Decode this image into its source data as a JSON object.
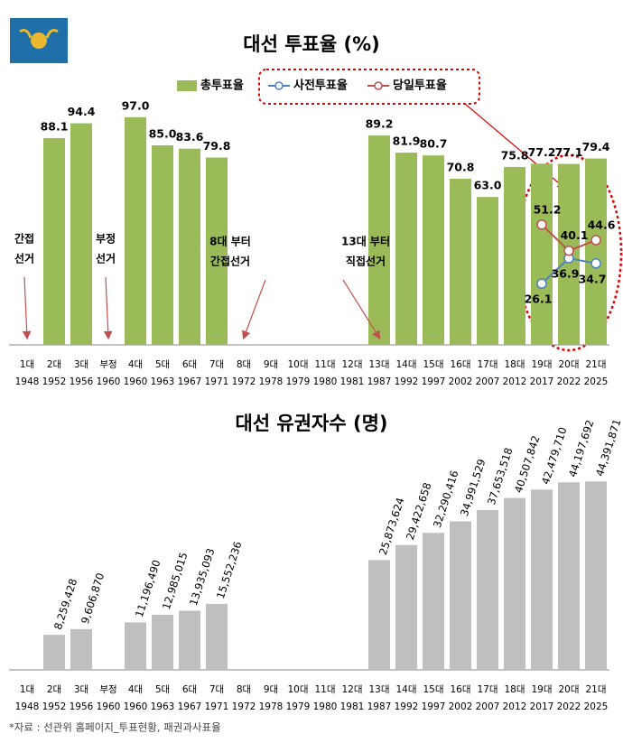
{
  "chart_data": [
    {
      "type": "bar",
      "title": "대선 투표율 (%)",
      "categories": [
        "1대",
        "2대",
        "3대",
        "부정",
        "4대",
        "5대",
        "6대",
        "7대",
        "8대",
        "9대",
        "10대",
        "11대",
        "12대",
        "13대",
        "14대",
        "15대",
        "16대",
        "17대",
        "18대",
        "19대",
        "20대",
        "21대"
      ],
      "years": [
        "1948",
        "1952",
        "1956",
        "1960",
        "1960",
        "1963",
        "1967",
        "1971",
        "1972",
        "1978",
        "1979",
        "1980",
        "1981",
        "1987",
        "1992",
        "1997",
        "2002",
        "2007",
        "2012",
        "2017",
        "2022",
        "2025"
      ],
      "ylim": [
        0,
        100
      ],
      "series": [
        {
          "name": "총투표율",
          "type": "bar",
          "color": "#9bbb59",
          "values": [
            null,
            88.1,
            94.4,
            null,
            97.0,
            85.0,
            83.6,
            79.8,
            null,
            null,
            null,
            null,
            null,
            89.2,
            81.9,
            80.7,
            70.8,
            63.0,
            75.8,
            77.2,
            77.1,
            79.4
          ],
          "value_labels": [
            null,
            "88.1",
            "94.4",
            null,
            "97.0",
            "85.0",
            "83.6",
            "79.8",
            null,
            null,
            null,
            null,
            null,
            "89.2",
            "81.9",
            "80.7",
            "70.8",
            "63.0",
            "75.8",
            "77.2",
            "77.1",
            "79.4"
          ]
        },
        {
          "name": "사전투표율",
          "type": "line",
          "color": "#4f81bd",
          "values": [
            null,
            null,
            null,
            null,
            null,
            null,
            null,
            null,
            null,
            null,
            null,
            null,
            null,
            null,
            null,
            null,
            null,
            null,
            null,
            26.1,
            36.9,
            34.7
          ]
        },
        {
          "name": "당일투표율",
          "type": "line",
          "color": "#c0504d",
          "values": [
            null,
            null,
            null,
            null,
            null,
            null,
            null,
            null,
            null,
            null,
            null,
            null,
            null,
            null,
            null,
            null,
            null,
            null,
            null,
            51.2,
            40.1,
            44.6
          ]
        }
      ],
      "annotations": [
        [
          "간접",
          "선거"
        ],
        [
          "부정",
          "선거"
        ],
        [
          "8대 부터",
          "간접선거"
        ],
        [
          "13대 부터",
          "직접선거"
        ]
      ]
    },
    {
      "type": "bar",
      "title": "대선 유권자수 (명)",
      "categories": [
        "1대",
        "2대",
        "3대",
        "부정",
        "4대",
        "5대",
        "6대",
        "7대",
        "8대",
        "9대",
        "10대",
        "11대",
        "12대",
        "13대",
        "14대",
        "15대",
        "16대",
        "17대",
        "18대",
        "19대",
        "20대",
        "21대"
      ],
      "years": [
        "1948",
        "1952",
        "1956",
        "1960",
        "1960",
        "1963",
        "1967",
        "1971",
        "1972",
        "1978",
        "1979",
        "1980",
        "1981",
        "1987",
        "1992",
        "1997",
        "2002",
        "2007",
        "2012",
        "2017",
        "2022",
        "2025"
      ],
      "ylim": [
        0,
        50000000
      ],
      "color": "#bfbfbf",
      "values": [
        null,
        8259428,
        9606870,
        null,
        11196490,
        12985015,
        13935093,
        15552236,
        null,
        null,
        null,
        null,
        null,
        25873624,
        29422658,
        32290416,
        34991529,
        37653518,
        40507842,
        42479710,
        44197692,
        44391871
      ],
      "value_labels": [
        null,
        "8,259,428",
        "9,606,870",
        null,
        "11,196,490",
        "12,985,015",
        "13,935,093",
        "15,552,236",
        null,
        null,
        null,
        null,
        null,
        "25,873,624",
        "29,422,658",
        "32,290,416",
        "34,991,529",
        "37,653,518",
        "40,507,842",
        "42,479,710",
        "44,197,692",
        "44,391,871"
      ],
      "source": "*자료 : 선관위 홈페이지_투표현황, 패권과사표율"
    }
  ]
}
